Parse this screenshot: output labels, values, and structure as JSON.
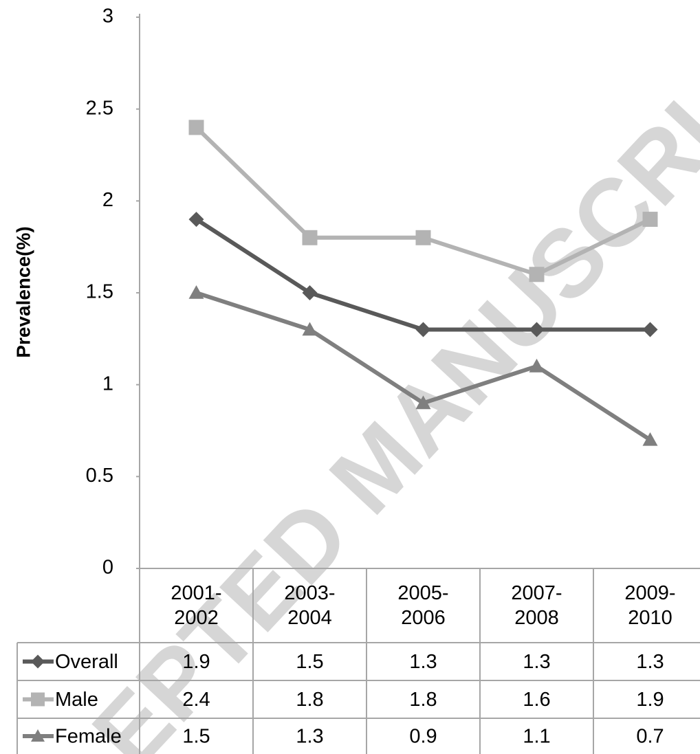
{
  "chart_data": {
    "type": "line",
    "y_label": "Prevalence(%)",
    "watermark": "EPTED MANUSCRI",
    "categories": [
      "2001-2002",
      "2003-2004",
      "2005-2006",
      "2007-2008",
      "2009-2010"
    ],
    "series": [
      {
        "name": "Overall",
        "color": "#595959",
        "marker": "diamond",
        "values": [
          1.9,
          1.5,
          1.3,
          1.3,
          1.3
        ]
      },
      {
        "name": "Male",
        "color": "#b3b3b3",
        "marker": "square",
        "values": [
          2.4,
          1.8,
          1.8,
          1.6,
          1.9
        ]
      },
      {
        "name": "Female",
        "color": "#7f7f7f",
        "marker": "triangle",
        "values": [
          1.5,
          1.3,
          0.9,
          1.1,
          0.7
        ]
      }
    ],
    "ylim": [
      0,
      3
    ],
    "yticks": [
      0,
      0.5,
      1,
      1.5,
      2,
      2.5,
      3
    ],
    "grid": false
  }
}
